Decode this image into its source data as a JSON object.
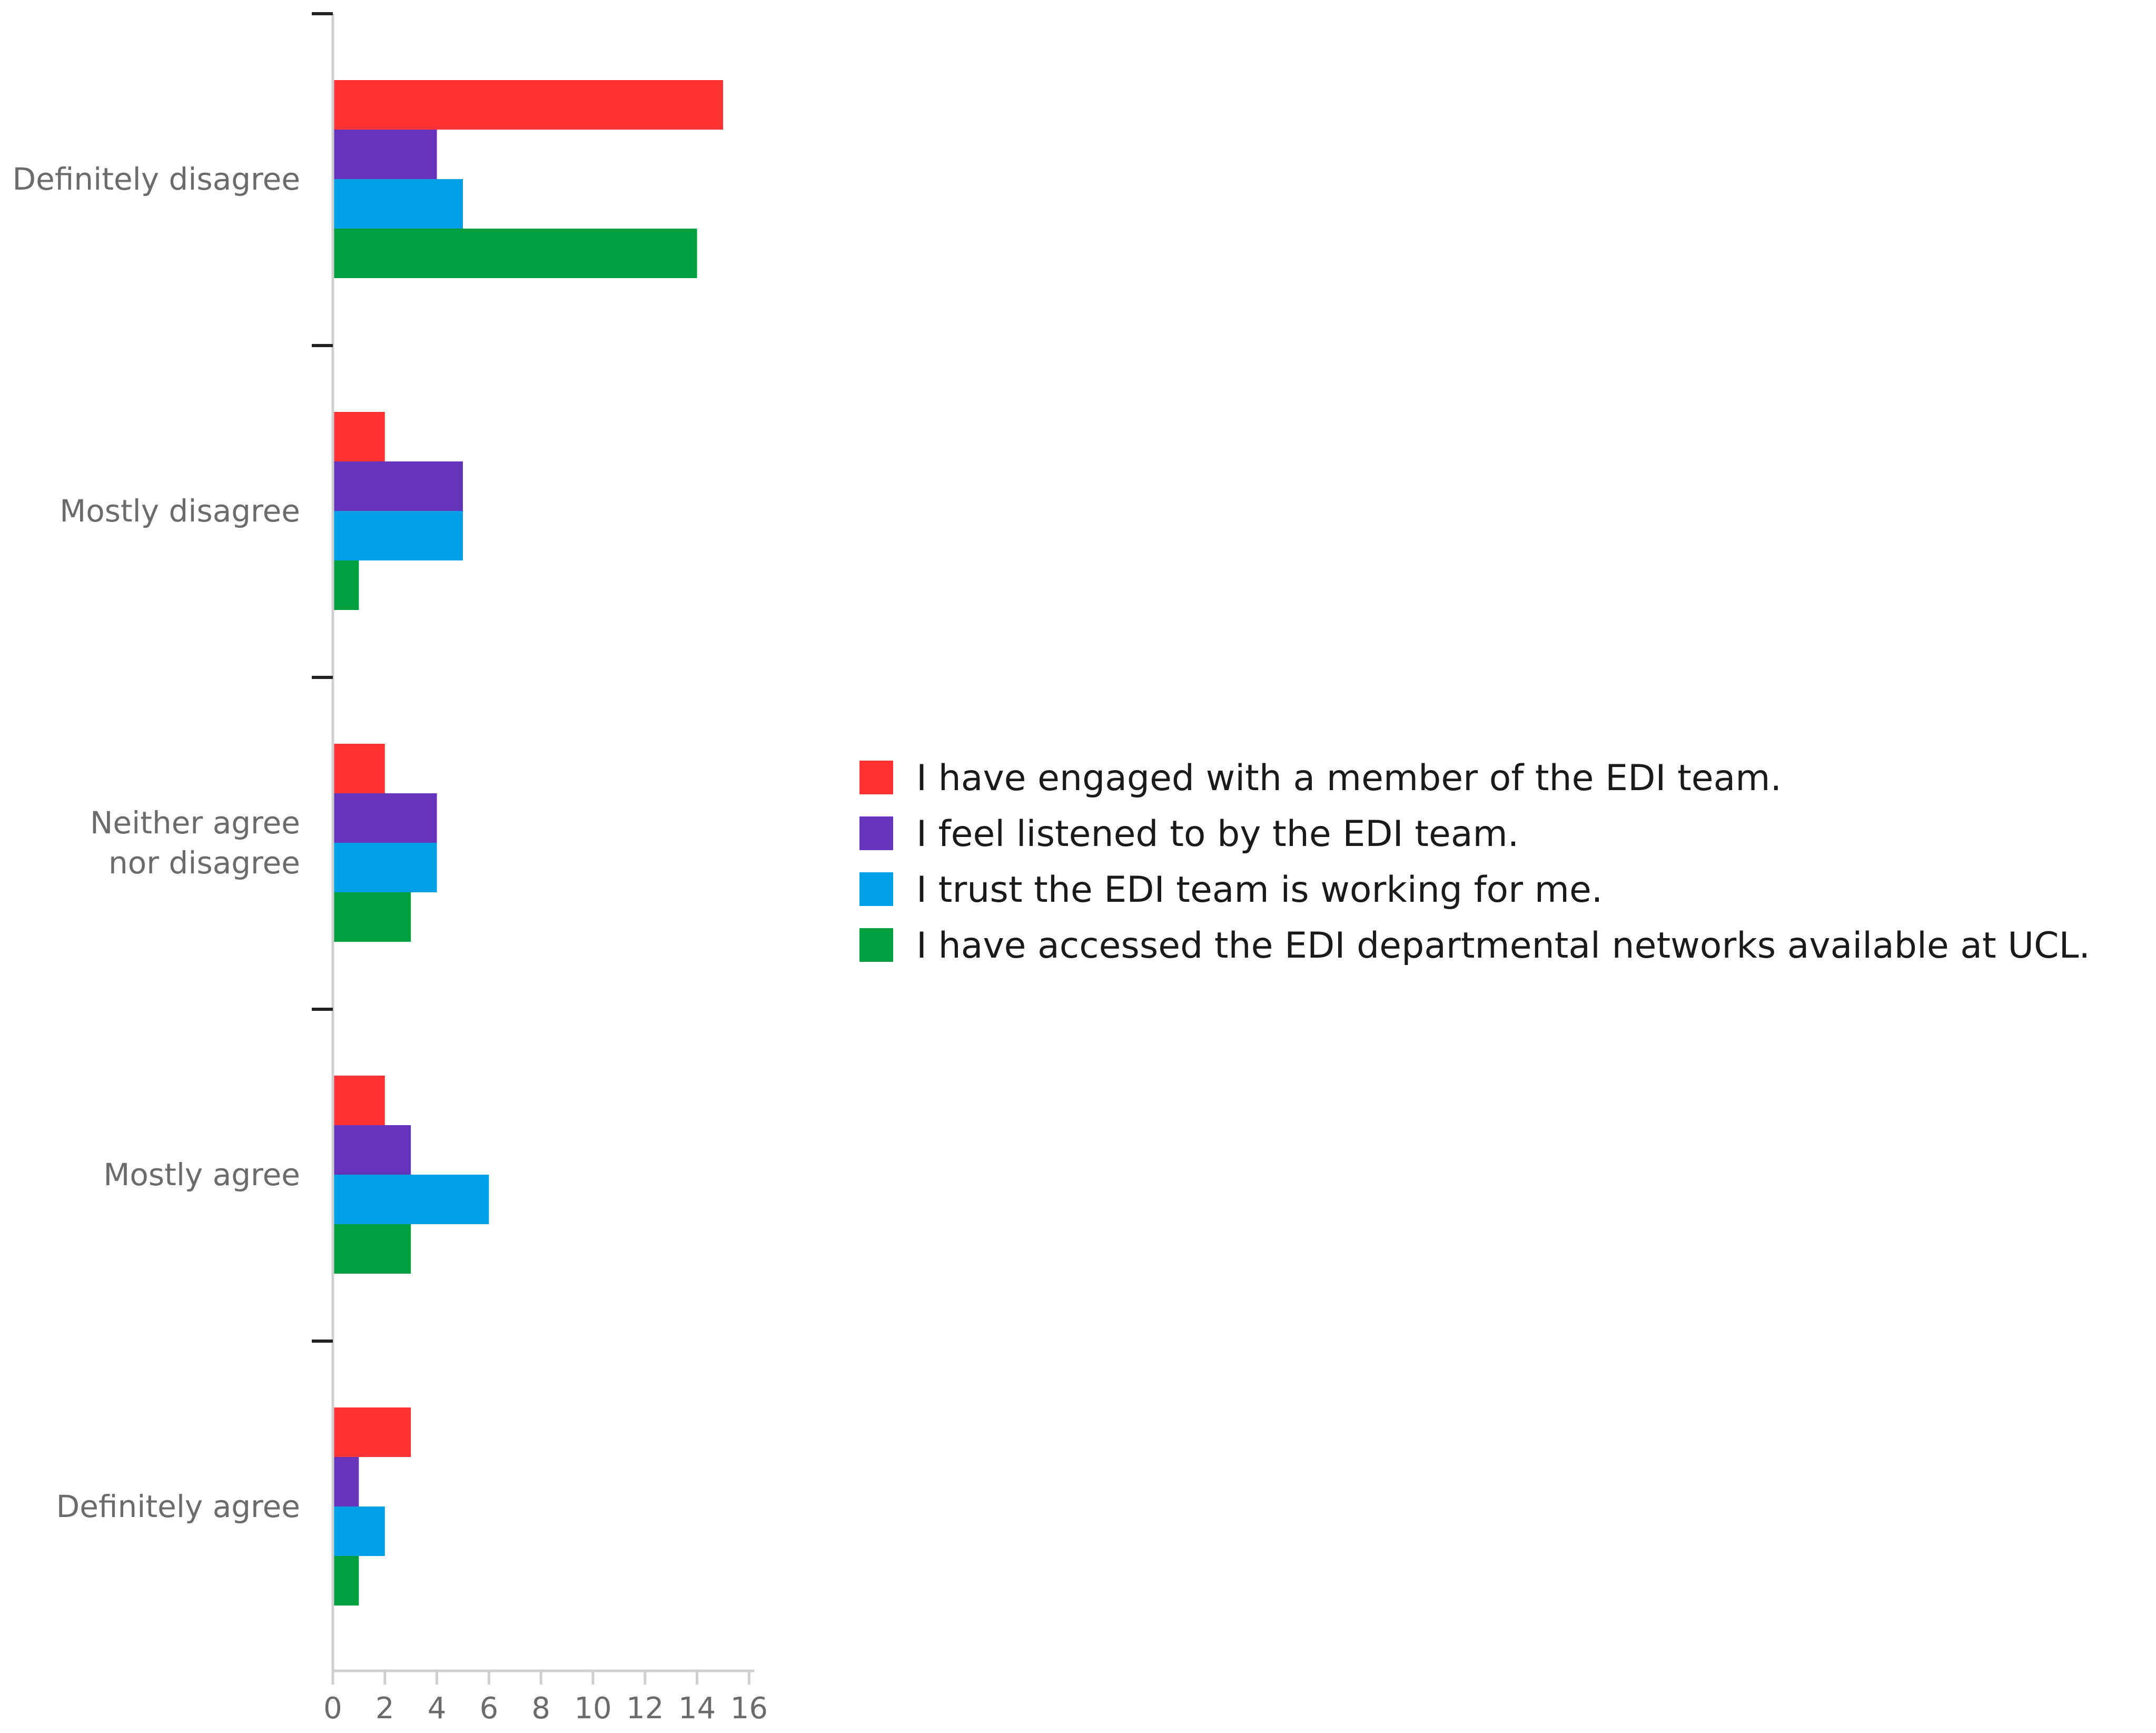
{
  "chart_data": {
    "type": "bar",
    "orientation": "horizontal",
    "categories": [
      "Definitely disagree",
      "Mostly disagree",
      "Neither agree nor disagree",
      "Mostly agree",
      "Definitely agree"
    ],
    "series": [
      {
        "name": "I have engaged with a member of the EDI team.",
        "color": "#ff3333",
        "values": [
          15,
          2,
          2,
          2,
          3
        ]
      },
      {
        "name": "I feel listened to by the EDI team.",
        "color": "#6633bb",
        "values": [
          4,
          5,
          4,
          3,
          1
        ]
      },
      {
        "name": "I trust the EDI team is working for me.",
        "color": "#00a0e6",
        "values": [
          5,
          5,
          4,
          6,
          2
        ]
      },
      {
        "name": "I have accessed the EDI departmental networks available at UCL.",
        "color": "#00a040",
        "values": [
          14,
          1,
          3,
          3,
          1
        ]
      }
    ],
    "xticks": [
      "0",
      "2",
      "4",
      "6",
      "8",
      "10",
      "12",
      "14",
      "16"
    ],
    "xlim": [
      0,
      16
    ],
    "grid": false,
    "legend_position": "right",
    "title": "",
    "xlabel": "",
    "ylabel": ""
  }
}
